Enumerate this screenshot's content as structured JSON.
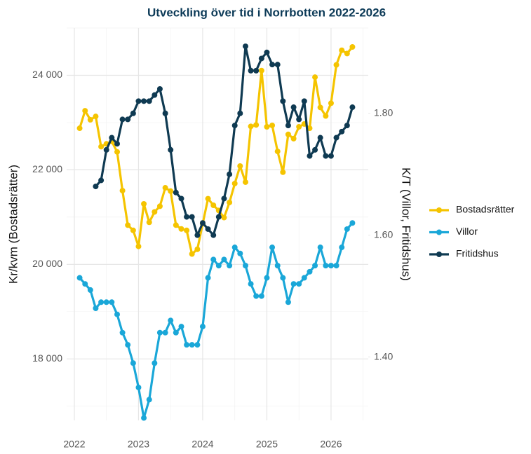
{
  "chart_data": {
    "type": "line",
    "title": "Utveckling över tid i Norrbotten 2022-2026",
    "ylabel": "Kr/kvm (Bostadsrätter)",
    "y2label": "K/T (Villor, Fritidshus)",
    "x": [
      2022.083,
      2022.167,
      2022.25,
      2022.333,
      2022.417,
      2022.5,
      2022.583,
      2022.667,
      2022.75,
      2022.833,
      2022.917,
      2023,
      2023.083,
      2023.167,
      2023.25,
      2023.333,
      2023.417,
      2023.5,
      2023.583,
      2023.667,
      2023.75,
      2023.833,
      2023.917,
      2024,
      2024.083,
      2024.167,
      2024.25,
      2024.333,
      2024.417,
      2024.5,
      2024.583,
      2024.667,
      2024.75,
      2024.833,
      2024.917,
      2025,
      2025.083,
      2025.167,
      2025.25,
      2025.333,
      2025.417,
      2025.5,
      2025.583,
      2025.667,
      2025.75,
      2025.833,
      2025.917,
      2026,
      2026.083,
      2026.167,
      2026.25,
      2026.333
    ],
    "xlim": [
      2021.88,
      2026.58
    ],
    "xticks": [
      2022,
      2023,
      2024,
      2025,
      2026
    ],
    "ylim": [
      16700,
      25000
    ],
    "yticks": [
      {
        "value": 18000,
        "label": "18 000"
      },
      {
        "value": 20000,
        "label": "20 000"
      },
      {
        "value": 22000,
        "label": "22 000"
      },
      {
        "value": 24000,
        "label": "24 000"
      }
    ],
    "y2lim": [
      1.296,
      1.94
    ],
    "y2ticks": [
      {
        "value": 1.4,
        "label": "1.40"
      },
      {
        "value": 1.6,
        "label": "1.60"
      },
      {
        "value": 1.8,
        "label": "1.80"
      }
    ],
    "grid": true,
    "legend": "right",
    "series": [
      {
        "name": "Bostadsrätter",
        "color": "#f5c400",
        "axis": "y",
        "values": [
          22880,
          23250,
          23060,
          23130,
          22490,
          22550,
          22600,
          22380,
          21560,
          20830,
          20720,
          20380,
          21280,
          20890,
          21110,
          21230,
          21620,
          21550,
          20830,
          20750,
          20720,
          20220,
          20320,
          20860,
          21390,
          21250,
          21140,
          20990,
          21310,
          21710,
          22080,
          21740,
          22920,
          22950,
          24100,
          22910,
          22940,
          22390,
          21950,
          22750,
          22660,
          22910,
          22970,
          22880,
          23960,
          23320,
          23140,
          23410,
          24220,
          24530,
          24460,
          24600
        ]
      },
      {
        "name": "Villor",
        "color": "#1aa7d8",
        "axis": "y2",
        "values": [
          1.53,
          1.52,
          1.51,
          1.48,
          1.49,
          1.49,
          1.49,
          1.47,
          1.44,
          1.42,
          1.39,
          1.35,
          1.3,
          1.33,
          1.39,
          1.44,
          1.44,
          1.46,
          1.44,
          1.45,
          1.42,
          1.42,
          1.42,
          1.45,
          1.53,
          1.56,
          1.55,
          1.56,
          1.55,
          1.58,
          1.57,
          1.55,
          1.52,
          1.5,
          1.5,
          1.53,
          1.58,
          1.55,
          1.53,
          1.49,
          1.52,
          1.52,
          1.53,
          1.54,
          1.55,
          1.58,
          1.55,
          1.55,
          1.55,
          1.58,
          1.61,
          1.62
        ]
      },
      {
        "name": "Fritidshus",
        "color": "#0f3a52",
        "axis": "y2",
        "values": [
          null,
          null,
          null,
          1.68,
          1.69,
          1.74,
          1.76,
          1.75,
          1.79,
          1.79,
          1.8,
          1.82,
          1.82,
          1.82,
          1.83,
          1.84,
          1.8,
          1.74,
          1.67,
          1.66,
          1.63,
          1.63,
          1.6,
          1.62,
          1.61,
          1.6,
          1.63,
          1.66,
          1.7,
          1.78,
          1.8,
          1.91,
          1.87,
          1.87,
          1.89,
          1.9,
          1.88,
          1.88,
          1.82,
          1.78,
          1.81,
          1.79,
          1.82,
          1.73,
          1.74,
          1.76,
          1.73,
          1.73,
          1.76,
          1.77,
          1.78,
          1.81
        ]
      }
    ]
  }
}
